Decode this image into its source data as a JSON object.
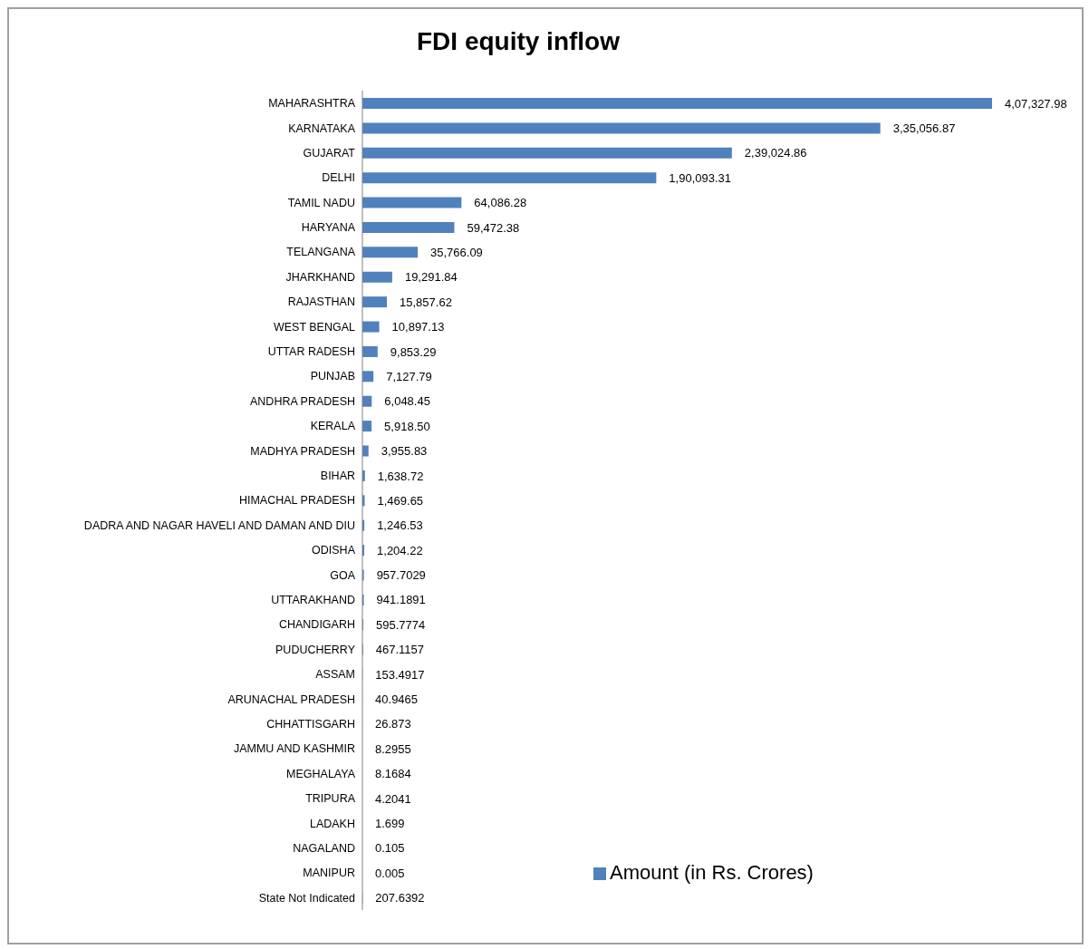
{
  "chart_data": {
    "type": "bar",
    "orientation": "horizontal",
    "title": "FDI equity inflow",
    "categories": [
      "MAHARASHTRA",
      "KARNATAKA",
      "GUJARAT",
      "DELHI",
      "TAMIL NADU",
      "HARYANA",
      "TELANGANA",
      "JHARKHAND",
      "RAJASTHAN",
      "WEST BENGAL",
      "UTTAR RADESH",
      "PUNJAB",
      "ANDHRA PRADESH",
      "KERALA",
      "MADHYA PRADESH",
      "BIHAR",
      "HIMACHAL  PRADESH",
      "DADRA AND NAGAR HAVELI AND DAMAN AND DIU",
      "ODISHA",
      "GOA",
      "UTTARAKHAND",
      "CHANDIGARH",
      "PUDUCHERRY",
      "ASSAM",
      "ARUNACHAL PRADESH",
      "CHHATTISGARH",
      "JAMMU AND KASHMIR",
      "MEGHALAYA",
      "TRIPURA",
      "LADAKH",
      "NAGALAND",
      "MANIPUR",
      "State Not Indicated"
    ],
    "series": [
      {
        "name": "Amount (in Rs. Crores)",
        "color": "#4f81bd",
        "values": [
          407327.98,
          335056.87,
          239024.86,
          190093.31,
          64086.28,
          59472.38,
          35766.09,
          19291.84,
          15857.62,
          10897.13,
          9853.29,
          7127.79,
          6048.45,
          5918.5,
          3955.83,
          1638.72,
          1469.65,
          1246.53,
          1204.22,
          957.7029,
          941.1891,
          595.7774,
          467.1157,
          153.4917,
          40.9465,
          26.873,
          8.2955,
          8.1684,
          4.2041,
          1.699,
          0.105,
          0.005,
          207.6392
        ],
        "value_labels": [
          "4,07,327.98",
          "3,35,056.87",
          "2,39,024.86",
          "1,90,093.31",
          "64,086.28",
          "59,472.38",
          "35,766.09",
          "19,291.84",
          "15,857.62",
          "10,897.13",
          "9,853.29",
          "7,127.79",
          "6,048.45",
          "5,918.50",
          "3,955.83",
          "1,638.72",
          "1,469.65",
          "1,246.53",
          "1,204.22",
          "957.7029",
          "941.1891",
          "595.7774",
          "467.1157",
          "153.4917",
          "40.9465",
          "26.873",
          "8.2955",
          "8.1684",
          "4.2041",
          "1.699",
          "0.105",
          "0.005",
          "207.6392"
        ]
      }
    ],
    "legend": "bottom"
  }
}
